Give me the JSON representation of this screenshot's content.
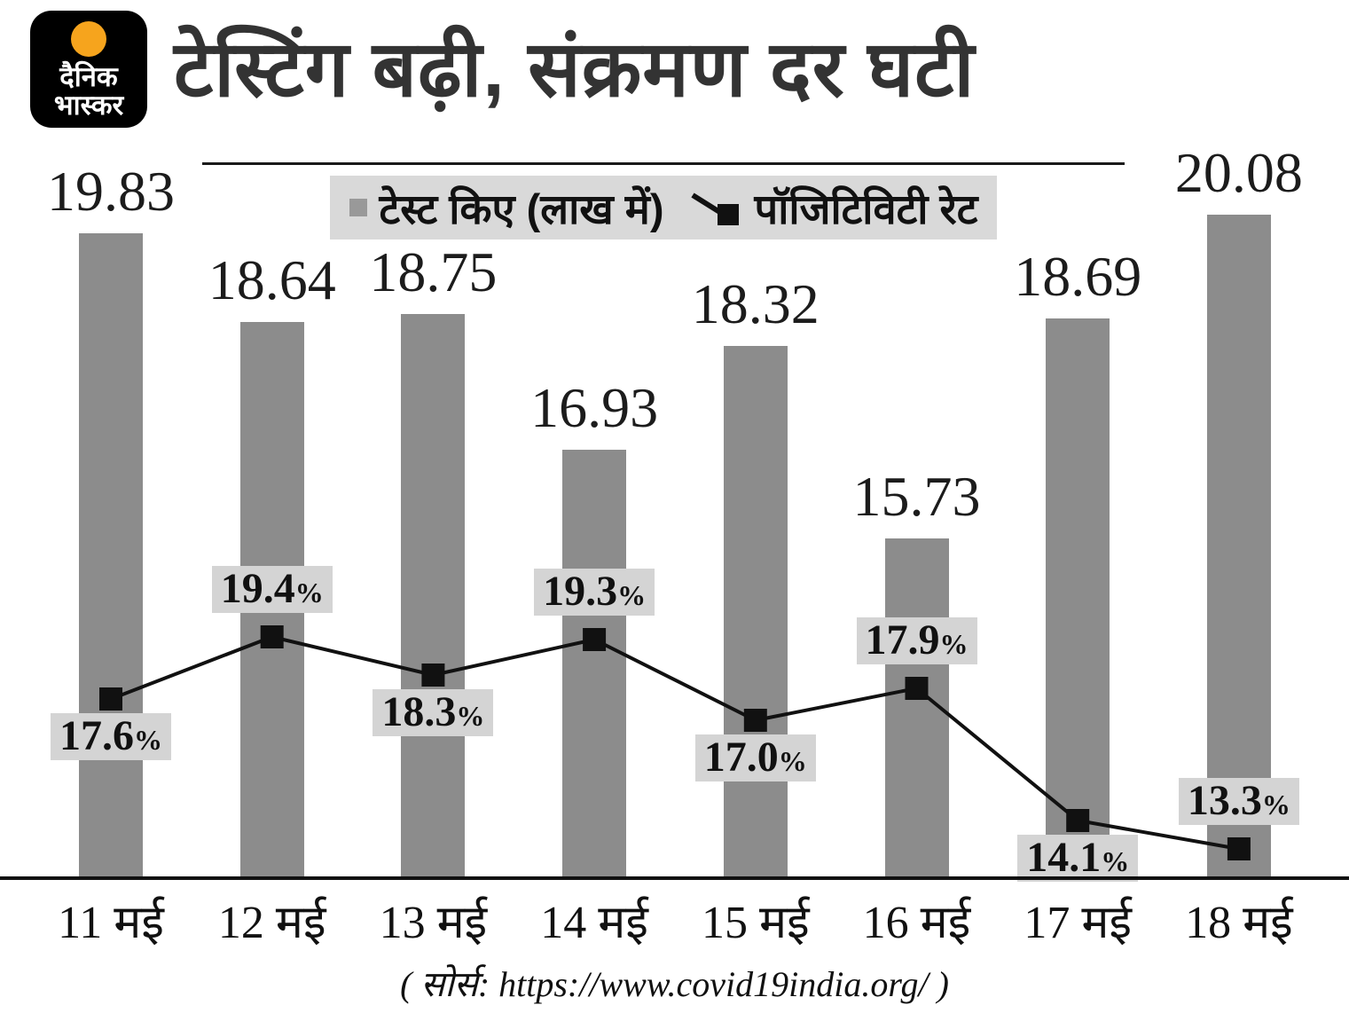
{
  "brand": {
    "name_line1": "दैनिक",
    "name_line2": "भास्कर"
  },
  "header": {
    "title": "टेस्टिंग बढ़ी, संक्रमण दर घटी"
  },
  "legend": {
    "tests_label": "टेस्ट किए (लाख में)",
    "rate_label": "पॉजिटिविटी रेट"
  },
  "chart_data": {
    "type": "bar",
    "categories": [
      "11 मई",
      "12 मई",
      "13 मई",
      "14 मई",
      "15 मई",
      "16 मई",
      "17 मई",
      "18 मई"
    ],
    "series": [
      {
        "name": "टेस्ट किए (लाख में)",
        "type": "bar",
        "values": [
          19.83,
          18.64,
          18.75,
          16.93,
          18.32,
          15.73,
          18.69,
          20.08
        ]
      },
      {
        "name": "पॉजिटिविटी रेट",
        "type": "line",
        "unit": "%",
        "values": [
          17.6,
          19.4,
          18.3,
          19.3,
          17.0,
          17.9,
          14.1,
          13.3
        ]
      }
    ],
    "value_labels": [
      "19.83",
      "18.64",
      "18.75",
      "16.93",
      "18.32",
      "15.73",
      "18.69",
      "20.08"
    ],
    "rate_labels": [
      "17.6",
      "19.4",
      "18.3",
      "19.3",
      "17.0",
      "17.9",
      "14.1",
      "13.3"
    ],
    "percent_sign": "%",
    "rate_label_side": [
      "below",
      "above",
      "below",
      "above",
      "below",
      "above",
      "below",
      "above"
    ],
    "title": "टेस्टिंग बढ़ी, संक्रमण दर घटी",
    "xlabel": "",
    "ylabel": "",
    "legend_position": "top",
    "grid": false,
    "colors": {
      "bar": "#8c8c8c",
      "line": "#111111",
      "label_bg": "#d4d4d4"
    }
  },
  "source": "( सोर्स:  https://www.covid19india.org/ )"
}
